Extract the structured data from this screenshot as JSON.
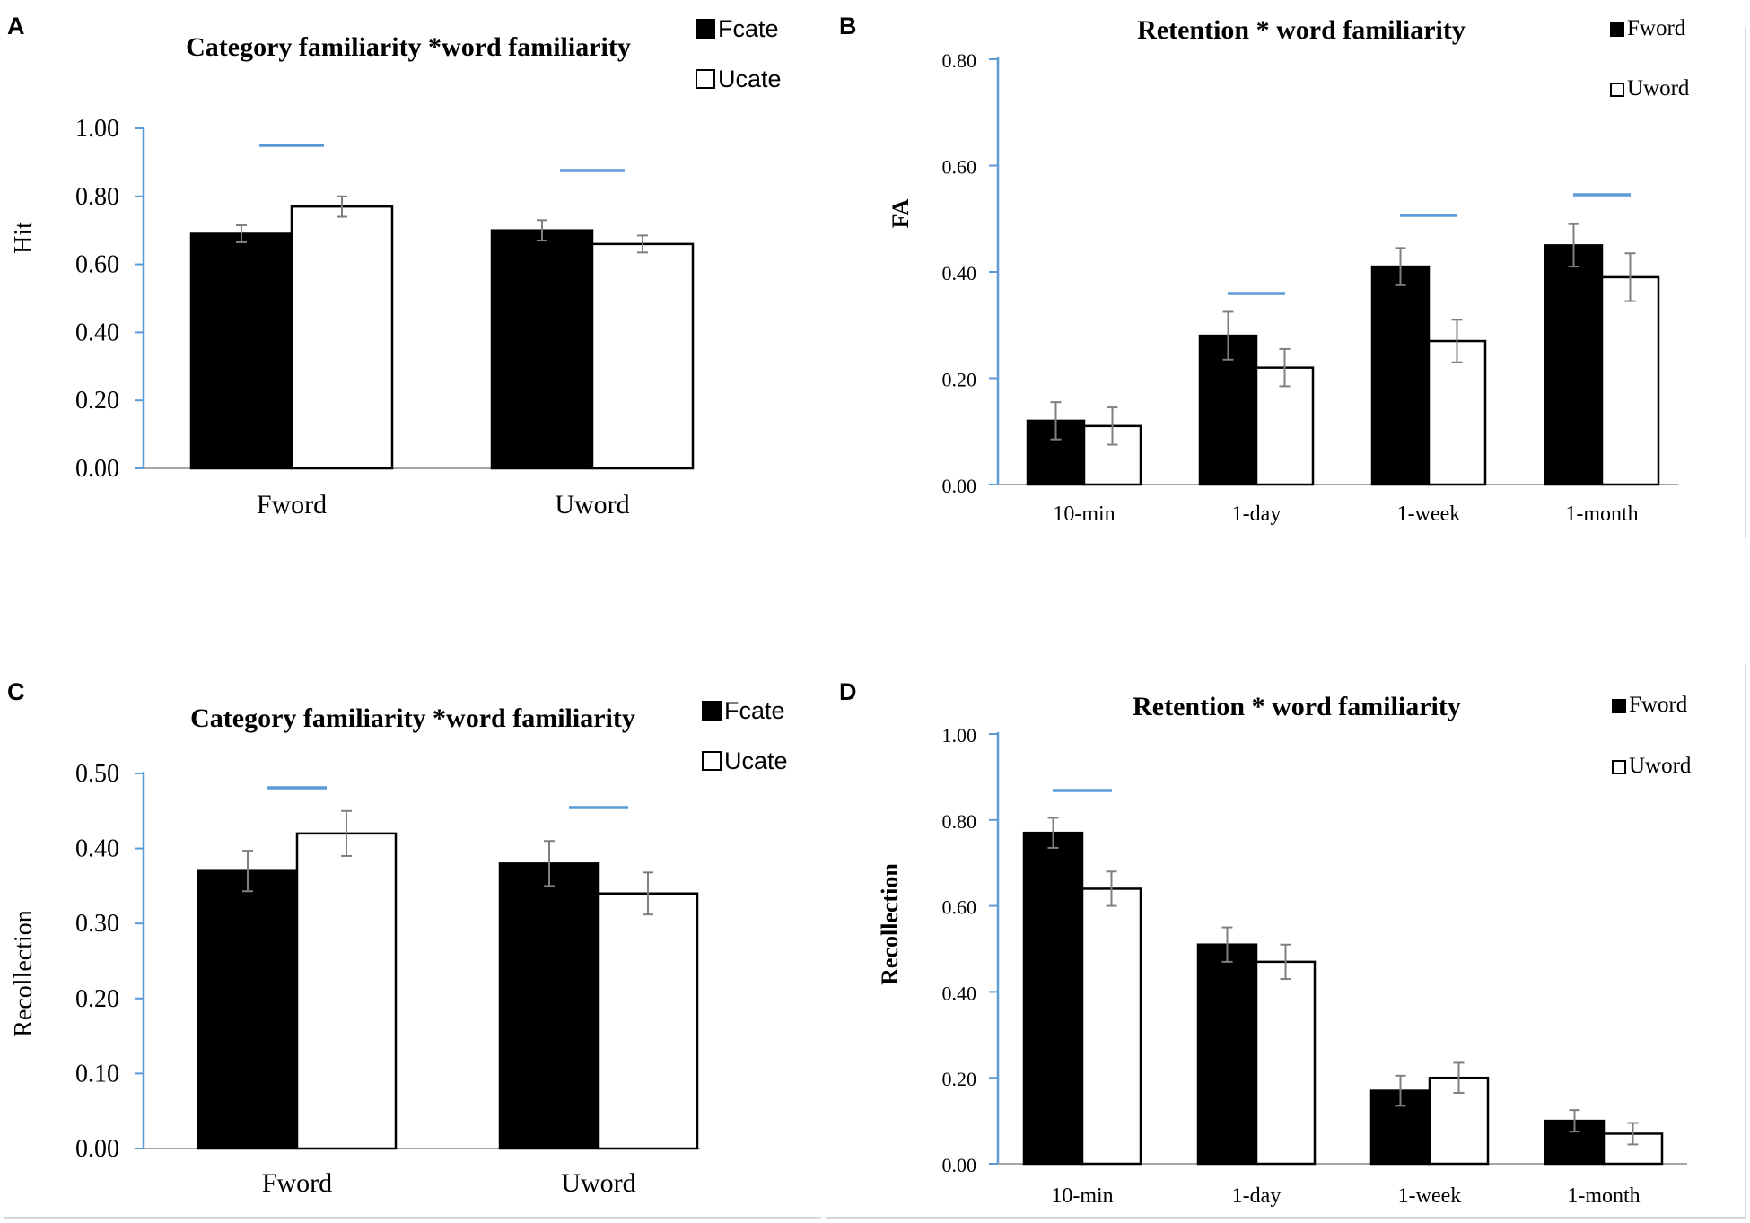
{
  "chart_data": [
    {
      "panel": "A",
      "type": "bar",
      "title": "Category familiarity *word familiarity",
      "xlabel": "",
      "ylabel": "Hit",
      "ylim": [
        0,
        1.0
      ],
      "yticks": [
        "0.00",
        "0.20",
        "0.40",
        "0.60",
        "0.80",
        "1.00"
      ],
      "categories": [
        "Fword",
        "Uword"
      ],
      "series": [
        {
          "name": "Fcate",
          "values": [
            0.69,
            0.7
          ],
          "errors": [
            0.025,
            0.03
          ],
          "fill": "#000000"
        },
        {
          "name": "Ucate",
          "values": [
            0.77,
            0.66
          ],
          "errors": [
            0.03,
            0.025
          ],
          "fill": "#ffffff"
        }
      ],
      "significance": [
        0,
        1
      ],
      "legend": "top-right"
    },
    {
      "panel": "B",
      "type": "bar",
      "title": "Retention * word familiarity",
      "xlabel": "",
      "ylabel": "FA",
      "ylim": [
        0,
        0.8
      ],
      "yticks": [
        "0.00",
        "0.20",
        "0.40",
        "0.60",
        "0.80"
      ],
      "categories": [
        "10-min",
        "1-day",
        "1-week",
        "1-month"
      ],
      "series": [
        {
          "name": "Fword",
          "values": [
            0.12,
            0.28,
            0.41,
            0.45
          ],
          "errors": [
            0.035,
            0.045,
            0.035,
            0.04
          ],
          "fill": "#000000"
        },
        {
          "name": "Uword",
          "values": [
            0.11,
            0.22,
            0.27,
            0.39
          ],
          "errors": [
            0.035,
            0.035,
            0.04,
            0.045
          ],
          "fill": "#ffffff"
        }
      ],
      "significance": [
        1,
        2,
        3
      ],
      "legend": "top-right"
    },
    {
      "panel": "C",
      "type": "bar",
      "title": "Category familiarity *word familiarity",
      "xlabel": "",
      "ylabel": "Recollection",
      "ylim": [
        0,
        0.5
      ],
      "yticks": [
        "0.00",
        "0.10",
        "0.20",
        "0.30",
        "0.40",
        "0.50"
      ],
      "categories": [
        "Fword",
        "Uword"
      ],
      "series": [
        {
          "name": "Fcate",
          "values": [
            0.37,
            0.38
          ],
          "errors": [
            0.027,
            0.03
          ],
          "fill": "#000000"
        },
        {
          "name": "Ucate",
          "values": [
            0.42,
            0.34
          ],
          "errors": [
            0.03,
            0.028
          ],
          "fill": "#ffffff"
        }
      ],
      "significance": [
        0,
        1
      ],
      "legend": "top-right"
    },
    {
      "panel": "D",
      "type": "bar",
      "title": "Retention * word familiarity",
      "xlabel": "",
      "ylabel": "Recollection",
      "ylim": [
        0,
        1.0
      ],
      "yticks": [
        "0.00",
        "0.20",
        "0.40",
        "0.60",
        "0.80",
        "1.00"
      ],
      "categories": [
        "10-min",
        "1-day",
        "1-week",
        "1-month"
      ],
      "series": [
        {
          "name": "Fword",
          "values": [
            0.77,
            0.51,
            0.17,
            0.1
          ],
          "errors": [
            0.035,
            0.04,
            0.035,
            0.025
          ],
          "fill": "#000000"
        },
        {
          "name": "Uword",
          "values": [
            0.64,
            0.47,
            0.2,
            0.07
          ],
          "errors": [
            0.04,
            0.04,
            0.035,
            0.025
          ],
          "fill": "#ffffff"
        }
      ],
      "significance": [
        0
      ],
      "legend": "top-right"
    }
  ],
  "colors": {
    "axis": "#5b9bd5",
    "significance": "#5b9bd5",
    "error_bar": "#7f7f7f",
    "bar_stroke": "#000000",
    "frame": "#d9d9d9"
  }
}
